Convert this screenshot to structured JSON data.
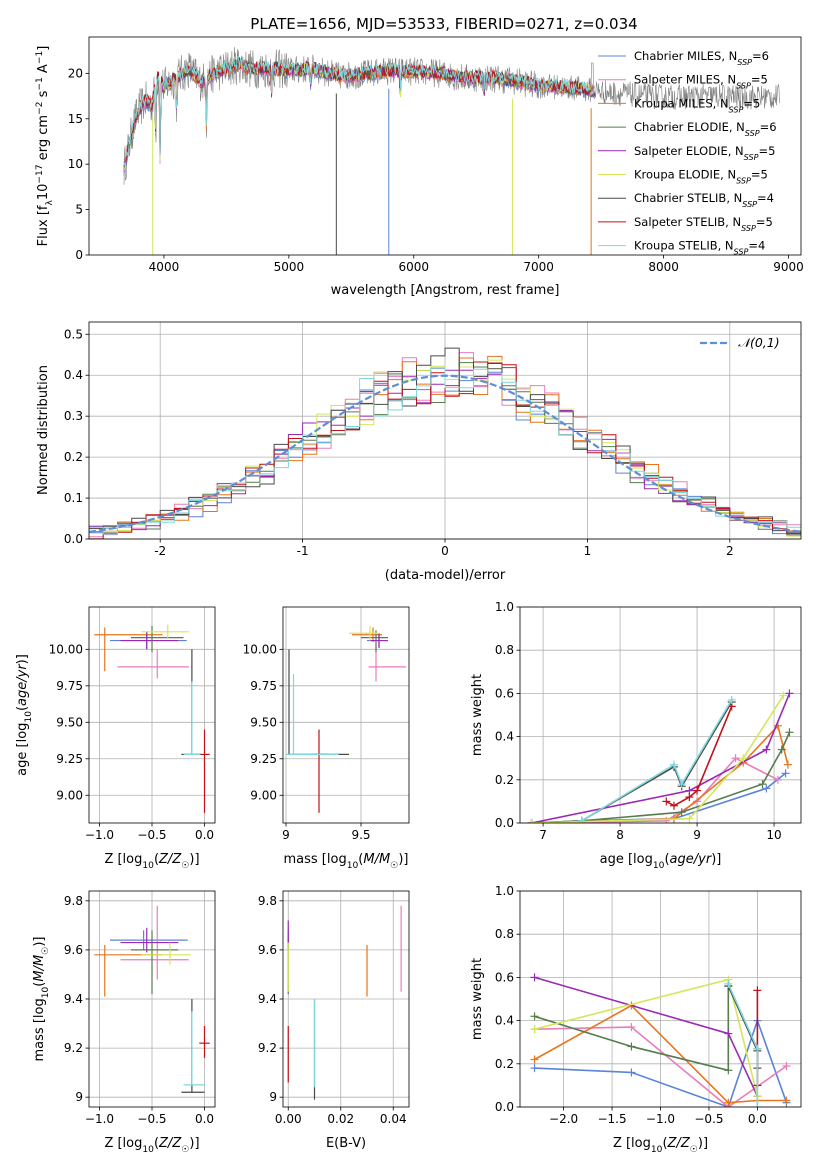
{
  "title": "PLATE=1656, MJD=53533, FIBERID=0271, z=0.034",
  "models": [
    {
      "name": "Chabrier MILES",
      "nssp": 6,
      "color": "#5b84d8"
    },
    {
      "name": "Salpeter MILES",
      "nssp": 5,
      "color": "#e87dbc"
    },
    {
      "name": "Kroupa MILES",
      "nssp": 5,
      "color": "#e6761c"
    },
    {
      "name": "Chabrier ELODIE",
      "nssp": 6,
      "color": "#567d4c"
    },
    {
      "name": "Salpeter ELODIE",
      "nssp": 5,
      "color": "#9a2ab4"
    },
    {
      "name": "Kroupa ELODIE",
      "nssp": 5,
      "color": "#d6e65a"
    },
    {
      "name": "Chabrier STELIB",
      "nssp": 4,
      "color": "#4a4a4a"
    },
    {
      "name": "Salpeter STELIB",
      "nssp": 5,
      "color": "#c2111a"
    },
    {
      "name": "Kroupa STELIB",
      "nssp": 4,
      "color": "#7fd8dc"
    }
  ],
  "chart_data": [
    {
      "id": "spectrum",
      "type": "line",
      "xlabel": "wavelength [Angstrom, rest frame]",
      "ylabel": "Flux [f_λ10^-17 erg cm^-2 s^-1 A^-1]",
      "xlim": [
        3400,
        9100
      ],
      "ylim": [
        0,
        24
      ],
      "xticks": [
        4000,
        5000,
        6000,
        7000,
        8000,
        9000
      ],
      "yticks": [
        0,
        5,
        10,
        15,
        20
      ],
      "grid": false,
      "legend": "top-right",
      "data_color": "#7f7f7f",
      "continuum": {
        "x": [
          3680,
          3720,
          3760,
          3800,
          3850,
          3900,
          3950,
          4000,
          4100,
          4200,
          4300,
          4400,
          4500,
          4600,
          4700,
          4800,
          4900,
          5000,
          5200,
          5400,
          5600,
          5800,
          6000,
          6200,
          6400,
          6600,
          6800,
          7000,
          7200,
          7400,
          7600,
          7800,
          8000,
          8200,
          8400,
          8600,
          8800
        ],
        "y": [
          9.5,
          12,
          14.5,
          16,
          17,
          16.5,
          19.5,
          18.5,
          19.5,
          20.5,
          19,
          20,
          20.5,
          21,
          20.5,
          20.5,
          20.5,
          20.3,
          20.5,
          19.7,
          19.9,
          20.3,
          20.2,
          20.0,
          19.5,
          19.5,
          19.2,
          18.6,
          18.5,
          18.2,
          17.8,
          17.6,
          17.4,
          17.4,
          17.5,
          17.4,
          17.4
        ]
      },
      "data_range": [
        3680,
        8930
      ],
      "model_range": [
        3680,
        7450
      ],
      "features": [
        {
          "x": 3934,
          "depth": 6
        },
        {
          "x": 3969,
          "depth": 9.5
        },
        {
          "x": 4102,
          "depth": 4
        },
        {
          "x": 4340,
          "depth": 5
        },
        {
          "x": 4861,
          "depth": 3.5
        },
        {
          "x": 5175,
          "depth": 2
        },
        {
          "x": 5892,
          "depth": 3
        },
        {
          "x": 6563,
          "depth": 2
        }
      ],
      "spikes": [
        {
          "x": 3910,
          "color": "#d6e65a"
        },
        {
          "x": 5380,
          "color": "#4a4a4a"
        },
        {
          "x": 5800,
          "color": "#5b84d8"
        },
        {
          "x": 6790,
          "color": "#d6e65a"
        },
        {
          "x": 7420,
          "color": "#e6761c"
        }
      ]
    },
    {
      "id": "residual_histogram",
      "type": "step",
      "xlabel": "(data-model)/error",
      "ylabel": "Normed distribution",
      "xlim": [
        -2.5,
        2.5
      ],
      "ylim": [
        0,
        0.53
      ],
      "xticks": [
        -2,
        -1,
        0,
        1,
        2
      ],
      "yticks": [
        0.0,
        0.1,
        0.2,
        0.3,
        0.4,
        0.5
      ],
      "grid": true,
      "legend": "top-right",
      "reference": {
        "name": "𝒩(0,1)",
        "mu": 0,
        "sigma": 1,
        "color": "#5b8fd6"
      },
      "bin_edges_start": -2.5,
      "bin_width": 0.1,
      "bins": 50
    },
    {
      "id": "age_vs_Z",
      "type": "errorbar",
      "xlabel": "Z [log10(Z/Z☉)]",
      "ylabel": "age  [log10(age/yr)]",
      "xlim": [
        -1.1,
        0.1
      ],
      "ylim": [
        8.81,
        10.29
      ],
      "xticks": [
        -1.0,
        -0.5,
        0.0
      ],
      "xtick_labels": [
        "−1.0",
        "−0.5",
        "0.0"
      ],
      "yticks": [
        9.0,
        9.25,
        9.5,
        9.75,
        10.0
      ],
      "ytick_labels": [
        "9.00",
        "9.25",
        "9.50",
        "9.75",
        "10.00"
      ],
      "grid": true,
      "points": [
        {
          "model": 0,
          "x": -0.55,
          "xerr": [
            0.35,
            0.38
          ],
          "y": 10.06,
          "yerr": [
            0.06,
            0.06
          ]
        },
        {
          "model": 1,
          "x": -0.45,
          "xerr": [
            0.38,
            0.3
          ],
          "y": 9.88,
          "yerr": [
            0.08,
            0.12
          ]
        },
        {
          "model": 2,
          "x": -0.95,
          "xerr": [
            0.1,
            0.55
          ],
          "y": 10.1,
          "yerr": [
            0.25,
            0.05
          ]
        },
        {
          "model": 3,
          "x": -0.5,
          "xerr": [
            0.2,
            0.3
          ],
          "y": 10.08,
          "yerr": [
            0.1,
            0.08
          ]
        },
        {
          "model": 4,
          "x": -0.55,
          "xerr": [
            0.25,
            0.3
          ],
          "y": 10.06,
          "yerr": [
            0.06,
            0.06
          ]
        },
        {
          "model": 5,
          "x": -0.35,
          "xerr": [
            0.25,
            0.2
          ],
          "y": 10.12,
          "yerr": [
            0.05,
            0.05
          ]
        },
        {
          "model": 6,
          "x": -0.12,
          "xerr": [
            0.1,
            0.08
          ],
          "y": 9.28,
          "yerr": [
            0.0,
            0.72
          ]
        },
        {
          "model": 7,
          "x": 0.0,
          "xerr": [
            0.05,
            0.05
          ],
          "y": 9.28,
          "yerr": [
            0.4,
            0.17
          ]
        },
        {
          "model": 8,
          "x": -0.12,
          "xerr": [
            0.08,
            0.08
          ],
          "y": 9.28,
          "yerr": [
            0.0,
            0.5
          ]
        }
      ]
    },
    {
      "id": "age_vs_mass",
      "type": "errorbar",
      "xlabel": "mass [log10(M/M☉)]",
      "ylabel": "",
      "xlim": [
        8.98,
        9.82
      ],
      "ylim": [
        8.81,
        10.29
      ],
      "xticks": [
        9.0,
        9.5
      ],
      "yticks": [
        9.0,
        9.25,
        9.5,
        9.75,
        10.0
      ],
      "ytick_labels": [
        "9.00",
        "9.25",
        "9.50",
        "9.75",
        "10.00"
      ],
      "grid": true,
      "points": [
        {
          "model": 0,
          "x": 9.62,
          "xerr": [
            0.08,
            0.06
          ],
          "y": 10.06,
          "yerr": [
            0.05,
            0.05
          ]
        },
        {
          "model": 1,
          "x": 9.6,
          "xerr": [
            0.05,
            0.2
          ],
          "y": 9.88,
          "yerr": [
            0.1,
            0.15
          ]
        },
        {
          "model": 2,
          "x": 9.58,
          "xerr": [
            0.14,
            0.06
          ],
          "y": 10.1,
          "yerr": [
            0.05,
            0.05
          ]
        },
        {
          "model": 3,
          "x": 9.6,
          "xerr": [
            0.1,
            0.08
          ],
          "y": 10.08,
          "yerr": [
            0.1,
            0.05
          ]
        },
        {
          "model": 4,
          "x": 9.62,
          "xerr": [
            0.06,
            0.06
          ],
          "y": 10.06,
          "yerr": [
            0.05,
            0.05
          ]
        },
        {
          "model": 5,
          "x": 9.56,
          "xerr": [
            0.14,
            0.06
          ],
          "y": 10.11,
          "yerr": [
            0.05,
            0.05
          ]
        },
        {
          "model": 6,
          "x": 9.02,
          "xerr": [
            0.01,
            0.4
          ],
          "y": 9.28,
          "yerr": [
            0.0,
            0.72
          ]
        },
        {
          "model": 7,
          "x": 9.22,
          "xerr": [
            0.05,
            0.05
          ],
          "y": 9.28,
          "yerr": [
            0.4,
            0.17
          ]
        },
        {
          "model": 8,
          "x": 9.05,
          "xerr": [
            0.05,
            0.3
          ],
          "y": 9.28,
          "yerr": [
            0.0,
            0.55
          ]
        }
      ]
    },
    {
      "id": "mass_weight_vs_age",
      "type": "line",
      "xlabel": "age  [log10(age/yr)]",
      "ylabel": "mass weight",
      "xlim": [
        6.7,
        10.35
      ],
      "ylim": [
        0,
        1
      ],
      "xticks": [
        7,
        8,
        9,
        10
      ],
      "yticks": [
        0.0,
        0.2,
        0.4,
        0.6,
        0.8,
        1.0
      ],
      "grid": true,
      "series": [
        {
          "model": 0,
          "x": [
            6.85,
            7.5,
            8.7,
            9.9,
            10.15
          ],
          "y": [
            0.0,
            0.01,
            0.02,
            0.16,
            0.23
          ]
        },
        {
          "model": 1,
          "x": [
            6.85,
            8.6,
            9.0,
            9.5,
            10.05
          ],
          "y": [
            0.0,
            0.01,
            0.1,
            0.3,
            0.2
          ]
        },
        {
          "model": 2,
          "x": [
            6.85,
            8.7,
            9.6,
            10.05,
            10.18
          ],
          "y": [
            0.0,
            0.02,
            0.28,
            0.45,
            0.27
          ]
        },
        {
          "model": 3,
          "x": [
            6.85,
            7.5,
            8.8,
            9.85,
            10.1,
            10.2
          ],
          "y": [
            0.0,
            0.01,
            0.05,
            0.18,
            0.34,
            0.42
          ]
        },
        {
          "model": 4,
          "x": [
            6.85,
            8.9,
            9.9,
            10.2
          ],
          "y": [
            0.0,
            0.15,
            0.34,
            0.6
          ]
        },
        {
          "model": 5,
          "x": [
            6.85,
            8.9,
            9.6,
            10.12
          ],
          "y": [
            0.0,
            0.02,
            0.3,
            0.59
          ]
        },
        {
          "model": 6,
          "x": [
            7.5,
            8.7,
            8.8,
            9.45
          ],
          "y": [
            0.01,
            0.26,
            0.17,
            0.56
          ]
        },
        {
          "model": 7,
          "x": [
            8.6,
            8.7,
            8.9,
            9.0,
            9.45
          ],
          "y": [
            0.1,
            0.08,
            0.12,
            0.15,
            0.54
          ]
        },
        {
          "model": 8,
          "x": [
            7.5,
            8.7,
            8.8,
            9.45
          ],
          "y": [
            0.01,
            0.27,
            0.18,
            0.57
          ]
        }
      ]
    },
    {
      "id": "mass_vs_Z",
      "type": "errorbar",
      "xlabel": "Z [log10(Z/Z☉)]",
      "ylabel": "mass [log10(M/M☉)]",
      "xlim": [
        -1.1,
        0.1
      ],
      "ylim": [
        8.96,
        9.84
      ],
      "xticks": [
        -1.0,
        -0.5,
        0.0
      ],
      "xtick_labels": [
        "−1.0",
        "−0.5",
        "0.0"
      ],
      "yticks": [
        9.0,
        9.2,
        9.4,
        9.6,
        9.8
      ],
      "grid": true,
      "points": [
        {
          "model": 0,
          "x": -0.58,
          "xerr": [
            0.32,
            0.42
          ],
          "y": 9.64,
          "yerr": [
            0.04,
            0.04
          ]
        },
        {
          "model": 1,
          "x": -0.45,
          "xerr": [
            0.35,
            0.3
          ],
          "y": 9.56,
          "yerr": [
            0.08,
            0.22
          ]
        },
        {
          "model": 2,
          "x": -0.95,
          "xerr": [
            0.1,
            0.55
          ],
          "y": 9.58,
          "yerr": [
            0.17,
            0.04
          ]
        },
        {
          "model": 3,
          "x": -0.5,
          "xerr": [
            0.2,
            0.25
          ],
          "y": 9.6,
          "yerr": [
            0.18,
            0.08
          ]
        },
        {
          "model": 4,
          "x": -0.55,
          "xerr": [
            0.25,
            0.3
          ],
          "y": 9.63,
          "yerr": [
            0.04,
            0.06
          ]
        },
        {
          "model": 5,
          "x": -0.33,
          "xerr": [
            0.27,
            0.2
          ],
          "y": 9.58,
          "yerr": [
            0.04,
            0.05
          ]
        },
        {
          "model": 6,
          "x": -0.12,
          "xerr": [
            0.1,
            0.12
          ],
          "y": 9.02,
          "yerr": [
            0.0,
            0.38
          ]
        },
        {
          "model": 7,
          "x": 0.0,
          "xerr": [
            0.05,
            0.05
          ],
          "y": 9.22,
          "yerr": [
            0.06,
            0.07
          ]
        },
        {
          "model": 8,
          "x": -0.12,
          "xerr": [
            0.08,
            0.12
          ],
          "y": 9.05,
          "yerr": [
            0.0,
            0.3
          ]
        }
      ]
    },
    {
      "id": "mass_vs_EBV",
      "type": "errorbar",
      "xlabel": "E(B-V)",
      "ylabel": "",
      "xlim": [
        -0.002,
        0.046
      ],
      "ylim": [
        8.96,
        9.84
      ],
      "xticks": [
        0.0,
        0.02,
        0.04
      ],
      "xtick_labels": [
        "0.00",
        "0.02",
        "0.04"
      ],
      "yticks": [
        9.0,
        9.2,
        9.4,
        9.6,
        9.8
      ],
      "grid": true,
      "points": [
        {
          "model": 0,
          "x": 0.0,
          "xerr": [
            0,
            0
          ],
          "y": 9.64,
          "yerr": [
            0.04,
            0.04
          ]
        },
        {
          "model": 1,
          "x": 0.043,
          "xerr": [
            0,
            0
          ],
          "y": 9.6,
          "yerr": [
            0.17,
            0.18
          ]
        },
        {
          "model": 2,
          "x": 0.03,
          "xerr": [
            0,
            0
          ],
          "y": 9.5,
          "yerr": [
            0.09,
            0.12
          ]
        },
        {
          "model": 3,
          "x": 0.0,
          "xerr": [
            0,
            0
          ],
          "y": 9.6,
          "yerr": [
            0.18,
            0.05
          ]
        },
        {
          "model": 4,
          "x": 0.0,
          "xerr": [
            0,
            0
          ],
          "y": 9.65,
          "yerr": [
            0.04,
            0.07
          ]
        },
        {
          "model": 5,
          "x": 0.0,
          "xerr": [
            0,
            0
          ],
          "y": 9.55,
          "yerr": [
            0.12,
            0.08
          ]
        },
        {
          "model": 6,
          "x": 0.01,
          "xerr": [
            0,
            0
          ],
          "y": 9.2,
          "yerr": [
            0.21,
            0.2
          ]
        },
        {
          "model": 7,
          "x": 0.0,
          "xerr": [
            0,
            0
          ],
          "y": 9.17,
          "yerr": [
            0.11,
            0.12
          ]
        },
        {
          "model": 8,
          "x": 0.01,
          "xerr": [
            0,
            0
          ],
          "y": 9.2,
          "yerr": [
            0.16,
            0.2
          ]
        }
      ]
    },
    {
      "id": "mass_weight_vs_Z",
      "type": "line",
      "xlabel": "Z [log10(Z/Z☉)]",
      "ylabel": "mass weight",
      "xlim": [
        -2.45,
        0.45
      ],
      "ylim": [
        0,
        1
      ],
      "xticks": [
        -2.0,
        -1.5,
        -1.0,
        -0.5,
        0.0
      ],
      "xtick_labels": [
        "−2.0",
        "−1.5",
        "−1.0",
        "−0.5",
        "0.0"
      ],
      "yticks": [
        0.0,
        0.2,
        0.4,
        0.6,
        0.8,
        1.0
      ],
      "grid": true,
      "series": [
        {
          "model": 0,
          "x": [
            -2.3,
            -1.3,
            -0.3,
            0.0,
            0.3
          ],
          "y": [
            0.18,
            0.16,
            0.0,
            0.4,
            0.02
          ]
        },
        {
          "model": 1,
          "x": [
            -2.3,
            -1.3,
            -0.3,
            0.3
          ],
          "y": [
            0.36,
            0.37,
            0.0,
            0.19
          ]
        },
        {
          "model": 2,
          "x": [
            -2.3,
            -1.3,
            -0.3,
            0.0,
            0.3
          ],
          "y": [
            0.22,
            0.47,
            0.02,
            0.03,
            0.03
          ]
        },
        {
          "model": 3,
          "x": [
            -2.3,
            -1.3,
            -0.3,
            -0.3,
            0.0
          ],
          "y": [
            0.42,
            0.28,
            0.17,
            0.56,
            0.27
          ]
        },
        {
          "model": 4,
          "x": [
            -2.3,
            -0.3,
            0.0
          ],
          "y": [
            0.6,
            0.34,
            0.05
          ]
        },
        {
          "model": 5,
          "x": [
            -2.3,
            -0.3,
            0.0
          ],
          "y": [
            0.36,
            0.59,
            0.05
          ]
        },
        {
          "model": 6,
          "x": [
            -0.3,
            0.0,
            0.0
          ],
          "y": [
            0.56,
            0.26,
            0.18
          ]
        },
        {
          "model": 7,
          "x": [
            0.0,
            0.0
          ],
          "y": [
            0.54,
            0.1
          ]
        },
        {
          "model": 8,
          "x": [
            -0.3,
            0.0,
            0.0
          ],
          "y": [
            0.57,
            0.27,
            0.0
          ]
        }
      ]
    }
  ]
}
